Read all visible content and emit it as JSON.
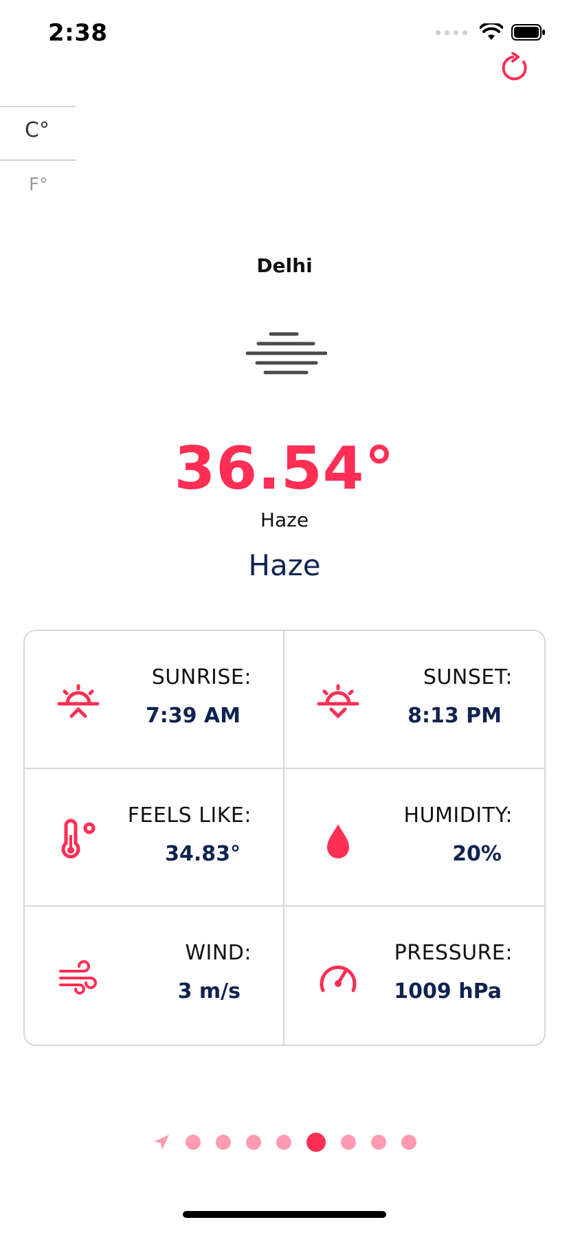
{
  "status_bar": {
    "time": "2:38"
  },
  "units": {
    "celsius": "C°",
    "fahrenheit": "F°"
  },
  "location": {
    "city": "Delhi"
  },
  "weather": {
    "temperature": "36.54°",
    "condition_main": "Haze",
    "condition_description": "Haze"
  },
  "details": {
    "sunrise": {
      "label": "SUNRISE:",
      "value": "7:39 AM"
    },
    "sunset": {
      "label": "SUNSET:",
      "value": "8:13 PM"
    },
    "feels_like": {
      "label": "FEELS LIKE:",
      "value": "34.83°"
    },
    "humidity": {
      "label": "HUMIDITY:",
      "value": "20%"
    },
    "wind": {
      "label": "WIND:",
      "value": "3 m/s"
    },
    "pressure": {
      "label": "PRESSURE:",
      "value": "1009 hPa"
    }
  },
  "pager": {
    "total_pages": 8,
    "active_index": 4
  },
  "colors": {
    "accent": "#ff2e54",
    "accent_light": "#ff9bb0",
    "navy": "#0f2350",
    "divider": "#d6d6d6"
  },
  "icons": {
    "refresh": "refresh-icon",
    "weather": "haze-icon",
    "sunrise": "sunrise-icon",
    "sunset": "sunset-icon",
    "feels_like": "thermometer-icon",
    "humidity": "water-drop-icon",
    "wind": "wind-icon",
    "pressure": "gauge-icon",
    "current_location": "location-arrow-icon"
  }
}
